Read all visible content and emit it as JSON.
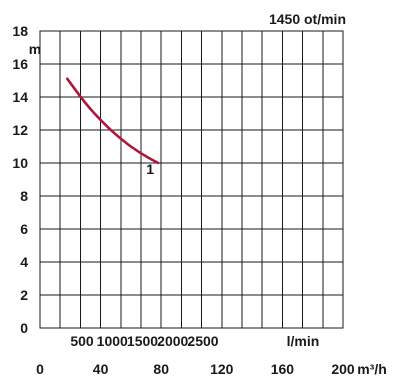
{
  "chart_data": {
    "type": "line",
    "title": "1450 ot/min",
    "ylabel": "m",
    "xlabel": "m³/h",
    "secondary_xlabel": "l/min",
    "ylim": [
      0,
      18
    ],
    "xlim": [
      0,
      200
    ],
    "yticks": [
      0,
      2,
      4,
      6,
      8,
      10,
      12,
      14,
      16,
      18
    ],
    "xticks": [
      0,
      40,
      80,
      120,
      160,
      200
    ],
    "secondary_xticks": [
      500,
      1000,
      1500,
      2000,
      2500
    ],
    "grid": true,
    "series": [
      {
        "name": "1",
        "color": "#b0163a",
        "x": [
          18,
          30,
          42,
          54,
          66,
          78
        ],
        "y": [
          15.1,
          13.6,
          12.4,
          11.4,
          10.6,
          10.0
        ]
      }
    ]
  }
}
